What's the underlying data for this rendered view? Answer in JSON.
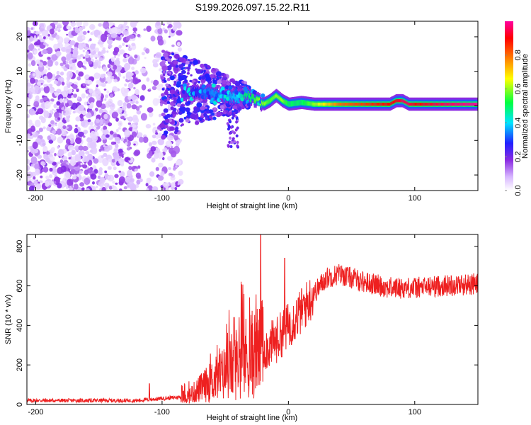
{
  "title": "S199.2026.097.15.22.R11",
  "chart_data": [
    {
      "type": "heatmap",
      "name": "spectrogram",
      "xlabel": "Height of straight line (km)",
      "ylabel": "Frequency (Hz)",
      "xlim": [
        -207,
        150
      ],
      "ylim": [
        -24.5,
        24.5
      ],
      "xticks": [
        -200,
        -100,
        0,
        100
      ],
      "xtick_labels": [
        "-200",
        "-100",
        "0",
        "100"
      ],
      "yticks": [
        -20,
        -10,
        0,
        10,
        20
      ],
      "ytick_labels": [
        "-20",
        "-10",
        "0",
        "10",
        "20"
      ],
      "colorbar": {
        "label": "Normalized spectral amplitude",
        "range": [
          0,
          1
        ],
        "ticks": [
          0.0,
          0.2,
          0.4,
          0.6,
          0.8
        ],
        "tick_labels": [
          "0.0",
          "0.2",
          "0.4",
          "0.6",
          "0.8"
        ],
        "colors": [
          "#ffffff",
          "#d8b8ff",
          "#8a2be2",
          "#2020ff",
          "#00e5ff",
          "#00ff40",
          "#ffff00",
          "#ff8000",
          "#ff0000",
          "#ff00a0"
        ]
      },
      "ridge": {
        "description": "dominant frequency ridge",
        "x": [
          -85,
          -70,
          -60,
          -50,
          -40,
          -35,
          -30,
          -25,
          -20,
          -15,
          -10,
          -5,
          0,
          10,
          20,
          40,
          60,
          80,
          85,
          90,
          95,
          100,
          120,
          150
        ],
        "frequency": [
          3.5,
          4,
          3.5,
          3,
          2.5,
          3.5,
          2.5,
          1.5,
          0.5,
          1.5,
          3,
          1.5,
          0.5,
          1,
          0.5,
          0.5,
          0.5,
          0.5,
          1.5,
          1.5,
          0.5,
          0.5,
          0.5,
          0.5
        ],
        "amplitude": [
          0.2,
          0.3,
          0.35,
          0.35,
          0.4,
          0.5,
          0.5,
          0.6,
          0.6,
          0.55,
          0.6,
          0.6,
          0.5,
          0.5,
          0.6,
          0.8,
          0.85,
          0.9,
          0.9,
          0.95,
          0.95,
          0.9,
          0.95,
          1.0
        ]
      }
    },
    {
      "type": "line",
      "name": "snr",
      "xlabel": "Height of straight line (km)",
      "ylabel": "SNR (10 * v/v)",
      "xlim": [
        -207,
        150
      ],
      "ylim": [
        0,
        860
      ],
      "xticks": [
        -200,
        -100,
        0,
        100
      ],
      "xtick_labels": [
        "-200",
        "-100",
        "0",
        "100"
      ],
      "yticks": [
        0,
        200,
        400,
        600,
        800
      ],
      "ytick_labels": [
        "0",
        "200",
        "400",
        "600",
        "800"
      ],
      "color": "#ee2020",
      "trend": {
        "x": [
          -207,
          -120,
          -100,
          -80,
          -70,
          -60,
          -50,
          -40,
          -30,
          -20,
          -10,
          0,
          10,
          20,
          30,
          40,
          60,
          80,
          100,
          120,
          150
        ],
        "y": [
          20,
          20,
          30,
          40,
          80,
          120,
          160,
          220,
          250,
          280,
          320,
          400,
          470,
          560,
          640,
          660,
          620,
          590,
          590,
          600,
          610
        ]
      },
      "spikes": [
        {
          "x": -22,
          "y": 860
        },
        {
          "x": -3,
          "y": 740
        },
        {
          "x": -43,
          "y": 440
        },
        {
          "x": -110,
          "y": 105
        }
      ]
    }
  ]
}
